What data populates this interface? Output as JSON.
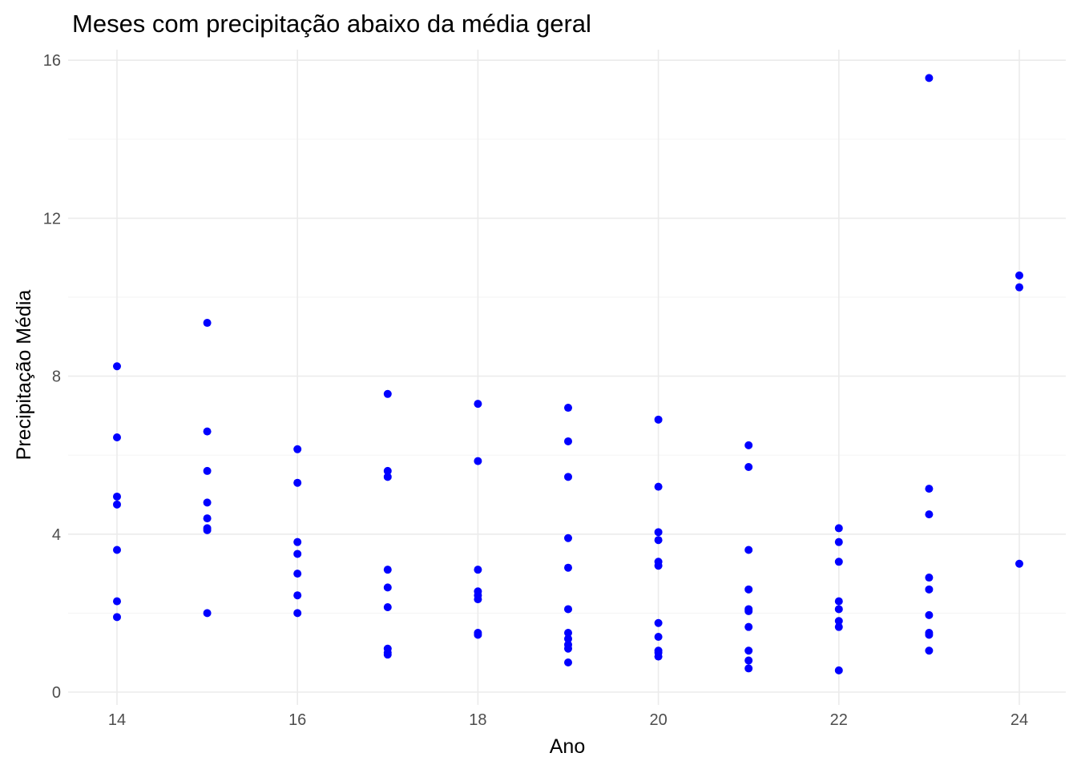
{
  "chart_data": {
    "type": "scatter",
    "title": "Meses com precipitação abaixo da média geral",
    "xlabel": "Ano",
    "ylabel": "Precipitação Média",
    "xlim": [
      13.4,
      24.5
    ],
    "ylim": [
      0,
      16
    ],
    "x_ticks": [
      14,
      16,
      18,
      20,
      22,
      24
    ],
    "y_ticks": [
      0,
      4,
      8,
      12,
      16
    ],
    "x_tick_labels": [
      "14",
      "16",
      "18",
      "20",
      "22",
      "24"
    ],
    "y_tick_labels": [
      "0",
      "4",
      "8",
      "12",
      "16"
    ],
    "grid": true,
    "legend": "none",
    "point_color": "#0000ff",
    "series": [
      {
        "points": [
          [
            14,
            8.25
          ],
          [
            14,
            6.45
          ],
          [
            14,
            4.95
          ],
          [
            14,
            4.75
          ],
          [
            14,
            3.6
          ],
          [
            14,
            2.3
          ],
          [
            14,
            1.9
          ],
          [
            15,
            9.35
          ],
          [
            15,
            6.6
          ],
          [
            15,
            5.6
          ],
          [
            15,
            4.8
          ],
          [
            15,
            4.4
          ],
          [
            15,
            4.15
          ],
          [
            15,
            4.1
          ],
          [
            15,
            2.0
          ],
          [
            16,
            6.15
          ],
          [
            16,
            5.3
          ],
          [
            16,
            3.8
          ],
          [
            16,
            3.5
          ],
          [
            16,
            3.0
          ],
          [
            16,
            2.45
          ],
          [
            16,
            2.0
          ],
          [
            17,
            7.55
          ],
          [
            17,
            5.6
          ],
          [
            17,
            5.45
          ],
          [
            17,
            3.1
          ],
          [
            17,
            2.65
          ],
          [
            17,
            2.15
          ],
          [
            17,
            1.1
          ],
          [
            17,
            1.0
          ],
          [
            17,
            0.95
          ],
          [
            18,
            7.3
          ],
          [
            18,
            5.85
          ],
          [
            18,
            3.1
          ],
          [
            18,
            2.55
          ],
          [
            18,
            2.45
          ],
          [
            18,
            2.35
          ],
          [
            18,
            1.5
          ],
          [
            18,
            1.45
          ],
          [
            19,
            7.2
          ],
          [
            19,
            6.35
          ],
          [
            19,
            5.45
          ],
          [
            19,
            3.9
          ],
          [
            19,
            3.15
          ],
          [
            19,
            2.1
          ],
          [
            19,
            1.5
          ],
          [
            19,
            1.35
          ],
          [
            19,
            1.2
          ],
          [
            19,
            1.1
          ],
          [
            19,
            0.75
          ],
          [
            20,
            6.9
          ],
          [
            20,
            5.2
          ],
          [
            20,
            4.05
          ],
          [
            20,
            3.85
          ],
          [
            20,
            3.3
          ],
          [
            20,
            3.2
          ],
          [
            20,
            1.75
          ],
          [
            20,
            1.4
          ],
          [
            20,
            1.05
          ],
          [
            20,
            1.0
          ],
          [
            20,
            0.9
          ],
          [
            21,
            6.25
          ],
          [
            21,
            5.7
          ],
          [
            21,
            3.6
          ],
          [
            21,
            2.6
          ],
          [
            21,
            2.1
          ],
          [
            21,
            2.05
          ],
          [
            21,
            1.65
          ],
          [
            21,
            1.05
          ],
          [
            21,
            0.8
          ],
          [
            21,
            0.6
          ],
          [
            22,
            4.15
          ],
          [
            22,
            3.8
          ],
          [
            22,
            3.3
          ],
          [
            22,
            2.3
          ],
          [
            22,
            2.1
          ],
          [
            22,
            1.8
          ],
          [
            22,
            1.65
          ],
          [
            22,
            0.55
          ],
          [
            23,
            15.55
          ],
          [
            23,
            5.15
          ],
          [
            23,
            4.5
          ],
          [
            23,
            2.9
          ],
          [
            23,
            2.6
          ],
          [
            23,
            1.95
          ],
          [
            23,
            1.5
          ],
          [
            23,
            1.45
          ],
          [
            23,
            1.05
          ],
          [
            24,
            10.55
          ],
          [
            24,
            10.25
          ],
          [
            24,
            3.25
          ]
        ]
      }
    ]
  }
}
